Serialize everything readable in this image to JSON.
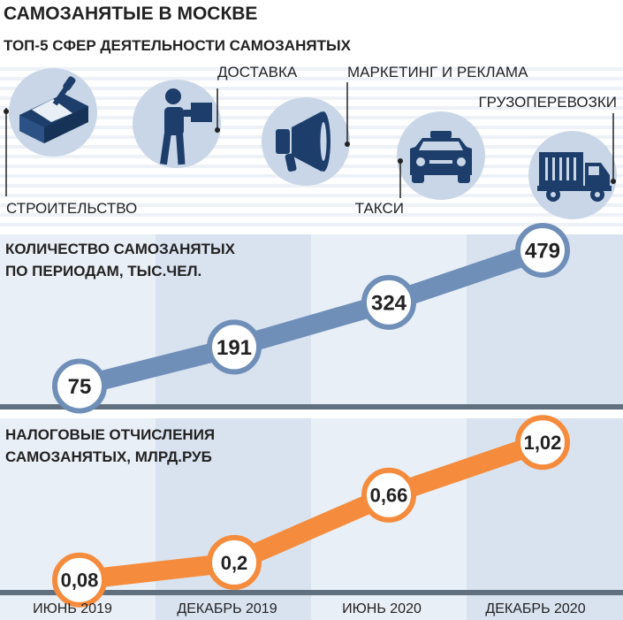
{
  "title": "САМОЗАНЯТЫЕ В МОСКВЕ",
  "subtitle": "ТОП-5 СФЕР ДЕЯТЕЛЬНОСТИ САМОЗАНЯТЫХ",
  "top_spheres": [
    {
      "label": "СТРОИТЕЛЬСТВО",
      "icon": "trowel-brick-icon"
    },
    {
      "label": "ДОСТАВКА",
      "icon": "courier-icon"
    },
    {
      "label": "МАРКЕТИНГ И РЕКЛАМА",
      "icon": "megaphone-icon"
    },
    {
      "label": "ТАКСИ",
      "icon": "taxi-icon"
    },
    {
      "label": "ГРУЗОПЕРЕВОЗКИ",
      "icon": "truck-icon"
    }
  ],
  "colors": {
    "accent_blue": "#6f8fb9",
    "accent_orange": "#f58b3c",
    "icon_circle": "#c8d6e7",
    "icon_dark": "#1d3e6a",
    "panel_light": "#e9eff6",
    "panel_dark": "#d9e3ef",
    "baseline": "#60707e",
    "text": "#222222"
  },
  "chart_data": [
    {
      "type": "line",
      "title": "КОЛИЧЕСТВО САМОЗАНЯТЫХ ПО ПЕРИОДАМ, ТЫС.ЧЕЛ.",
      "title_lines": [
        "КОЛИЧЕСТВО САМОЗАНЯТЫХ",
        "ПО ПЕРИОДАМ, ТЫС.ЧЕЛ."
      ],
      "categories": [
        "ИЮНЬ 2019",
        "ДЕКАБРЬ 2019",
        "ИЮНЬ 2020",
        "ДЕКАБРЬ 2020"
      ],
      "values": [
        75,
        191,
        324,
        479
      ],
      "labels": [
        "75",
        "191",
        "324",
        "479"
      ],
      "ylim": [
        0,
        500
      ],
      "grid": false,
      "color": "#6f8fb9"
    },
    {
      "type": "line",
      "title": "НАЛОГОВЫЕ ОТЧИСЛЕНИЯ САМОЗАНЯТЫХ, МЛРД.РУБ",
      "title_lines": [
        "НАЛОГОВЫЕ ОТЧИСЛЕНИЯ",
        "САМОЗАНЯТЫХ, МЛРД.РУБ"
      ],
      "categories": [
        "ИЮНЬ 2019",
        "ДЕКАБРЬ 2019",
        "ИЮНЬ 2020",
        "ДЕКАБРЬ 2020"
      ],
      "values": [
        0.08,
        0.2,
        0.66,
        1.02
      ],
      "labels": [
        "0,08",
        "0,2",
        "0,66",
        "1,02"
      ],
      "ylim": [
        0,
        1.1
      ],
      "grid": false,
      "color": "#f58b3c"
    }
  ]
}
